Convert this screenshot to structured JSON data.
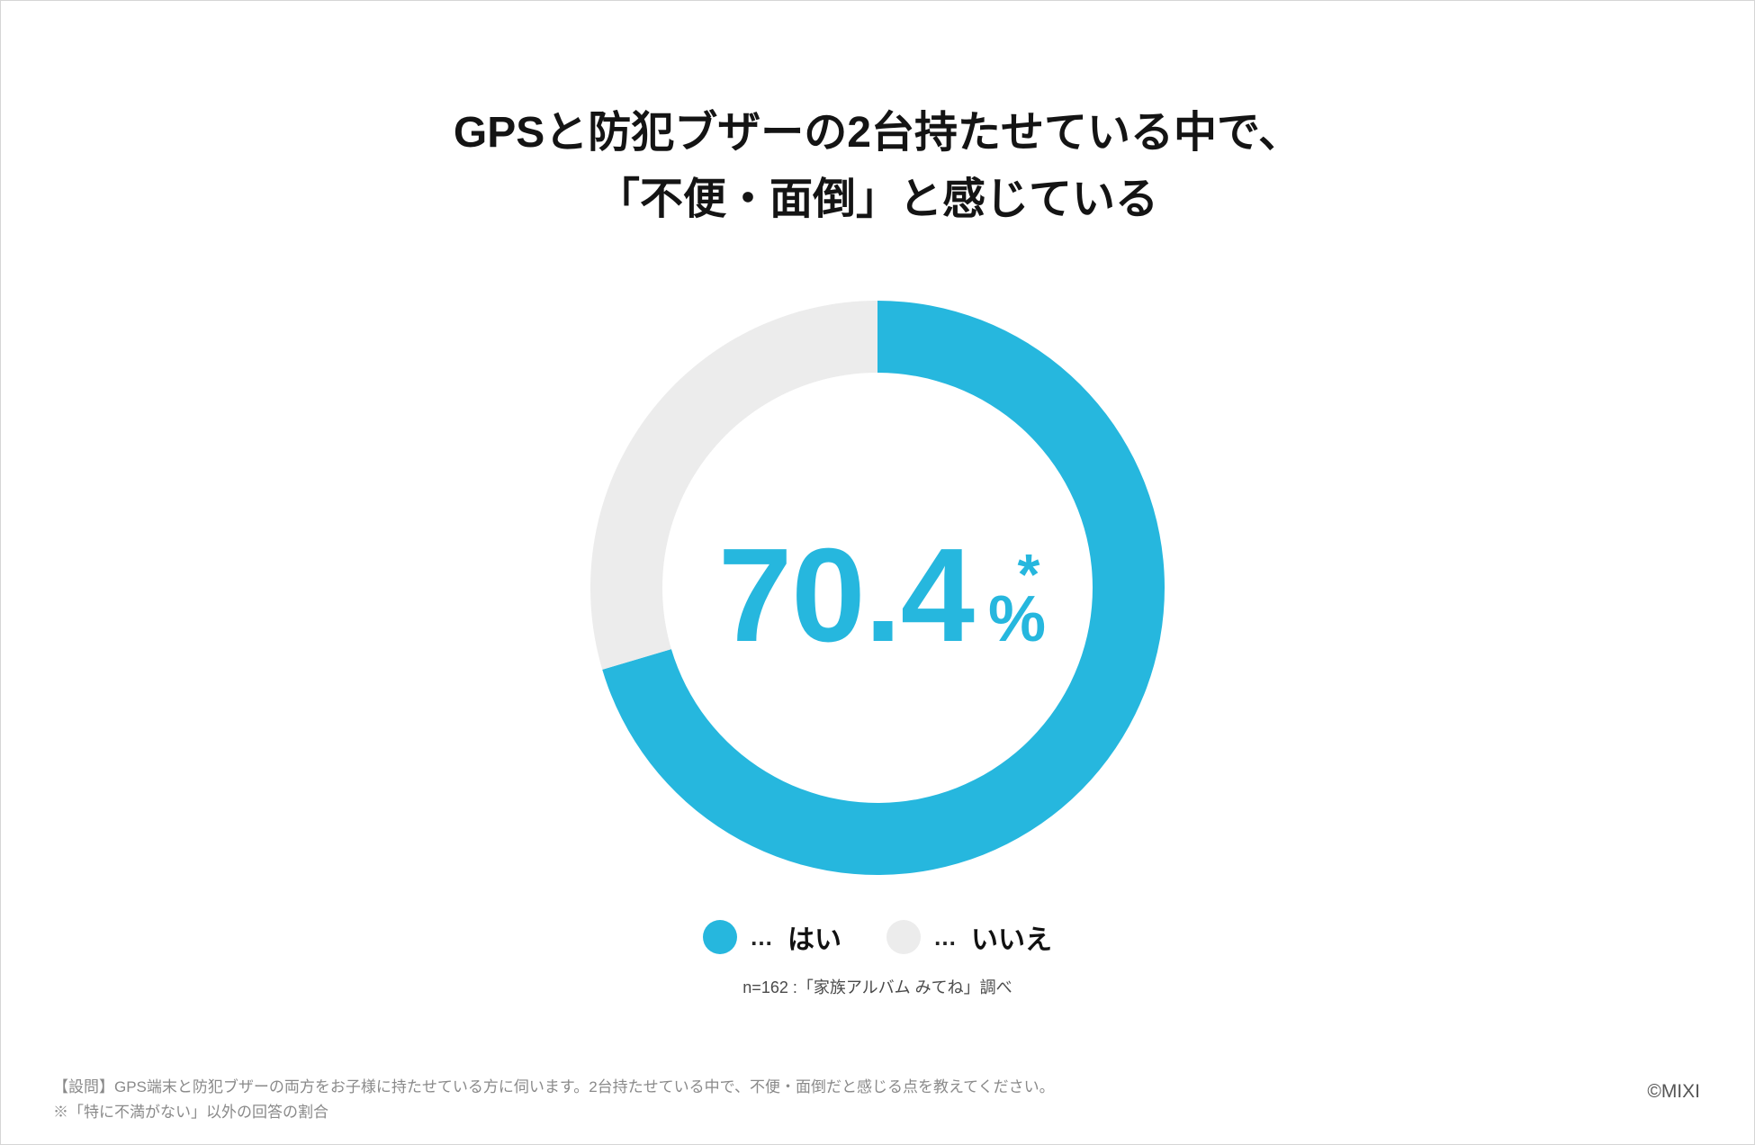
{
  "title": {
    "line1": "GPSと防犯ブザーの2台持たせている中で、",
    "line2": "「不便・面倒」と感じている"
  },
  "chart_data": {
    "type": "pie",
    "variant": "donut",
    "categories": [
      "はい",
      "いいえ"
    ],
    "values": [
      70.4,
      29.6
    ],
    "colors": [
      "#26B7DE",
      "#ECECEC"
    ],
    "center_label": {
      "value": "70.4",
      "unit": "%",
      "mark": "*"
    },
    "legend_placement": "bottom"
  },
  "legend": {
    "separator": "…"
  },
  "source": "n=162 :「家族アルバム みてね」調べ",
  "footnotes": [
    "【設問】GPS端末と防犯ブザーの両方をお子様に持たせている方に伺います。2台持たせている中で、不便・面倒だと感じる点を教えてください。",
    "※「特に不満がない」以外の回答の割合"
  ],
  "copyright": "©MIXI"
}
